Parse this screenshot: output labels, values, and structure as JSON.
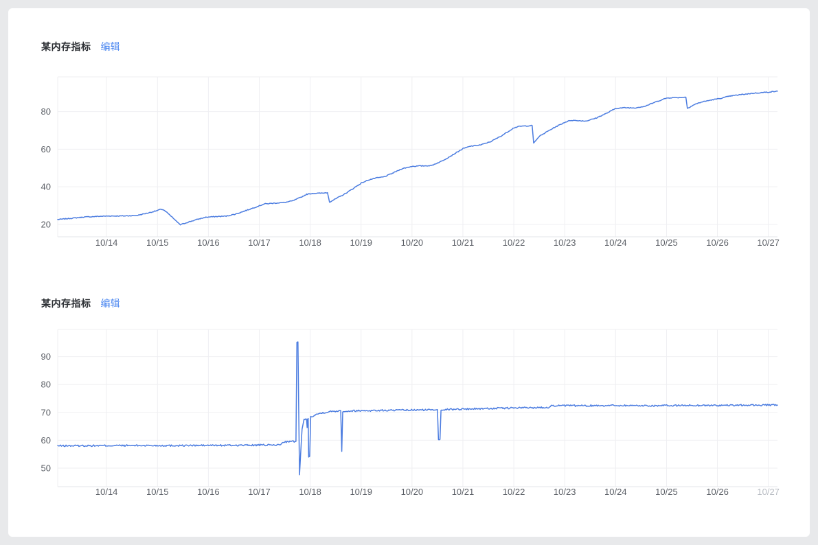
{
  "panels": [
    {
      "title": "某内存指标",
      "edit_label": "编辑"
    },
    {
      "title": "某内存指标",
      "edit_label": "编辑"
    }
  ],
  "colors": {
    "page_background": "#e8e9eb",
    "card_background": "#ffffff",
    "title_text": "#2b2e33",
    "edit_link": "#4a86f0",
    "grid_line": "#efeff2",
    "axis_line": "#e3e5e9",
    "tick_label": "#5b5f66",
    "tick_label_muted": "#b7bbc2",
    "series_line": "#4b7ce0"
  },
  "chart_data": [
    {
      "type": "line",
      "title": "某内存指标",
      "legend": [],
      "grid": true,
      "x_tick_labels": [
        "10/14",
        "10/15",
        "10/16",
        "10/17",
        "10/18",
        "10/19",
        "10/20",
        "10/21",
        "10/22",
        "10/23",
        "10/24",
        "10/25",
        "10/26",
        "10/27"
      ],
      "x_tick_days": [
        14,
        15,
        16,
        17,
        18,
        19,
        20,
        21,
        22,
        23,
        24,
        25,
        26,
        27
      ],
      "x_domain": [
        13.04,
        27.18
      ],
      "y_tick_values": [
        20,
        40,
        60,
        80
      ],
      "y_domain": [
        13.4,
        98.5
      ],
      "last_x_tick_muted": false,
      "noise_amplitude": 0.22,
      "noise_seed": 7,
      "points": [
        [
          13.04,
          22.6
        ],
        [
          13.25,
          23.1
        ],
        [
          13.55,
          23.9
        ],
        [
          13.85,
          24.3
        ],
        [
          14.1,
          24.5
        ],
        [
          14.35,
          24.5
        ],
        [
          14.6,
          24.8
        ],
        [
          14.85,
          26.3
        ],
        [
          15.0,
          27.4
        ],
        [
          15.07,
          28.1
        ],
        [
          15.12,
          27.7
        ],
        [
          15.2,
          26.0
        ],
        [
          15.33,
          22.8
        ],
        [
          15.45,
          19.8
        ],
        [
          15.6,
          21.2
        ],
        [
          15.8,
          22.8
        ],
        [
          15.95,
          23.8
        ],
        [
          16.1,
          24.1
        ],
        [
          16.35,
          24.4
        ],
        [
          16.55,
          25.6
        ],
        [
          16.75,
          27.5
        ],
        [
          17.0,
          29.9
        ],
        [
          17.1,
          30.9
        ],
        [
          17.3,
          31.3
        ],
        [
          17.5,
          31.7
        ],
        [
          17.65,
          32.5
        ],
        [
          17.8,
          34.2
        ],
        [
          17.93,
          36.0
        ],
        [
          18.05,
          36.5
        ],
        [
          18.2,
          36.6
        ],
        [
          18.34,
          36.9
        ],
        [
          18.38,
          31.9
        ],
        [
          18.52,
          33.9
        ],
        [
          18.66,
          35.9
        ],
        [
          18.8,
          38.3
        ],
        [
          19.0,
          41.9
        ],
        [
          19.15,
          43.7
        ],
        [
          19.3,
          44.7
        ],
        [
          19.45,
          45.3
        ],
        [
          19.6,
          47.0
        ],
        [
          19.8,
          49.6
        ],
        [
          20.0,
          50.9
        ],
        [
          20.15,
          51.1
        ],
        [
          20.38,
          51.3
        ],
        [
          20.58,
          53.6
        ],
        [
          20.8,
          57.0
        ],
        [
          21.0,
          60.3
        ],
        [
          21.15,
          61.6
        ],
        [
          21.35,
          62.3
        ],
        [
          21.55,
          64.1
        ],
        [
          21.75,
          67.0
        ],
        [
          21.9,
          69.6
        ],
        [
          22.0,
          71.4
        ],
        [
          22.12,
          72.2
        ],
        [
          22.25,
          72.4
        ],
        [
          22.36,
          72.6
        ],
        [
          22.39,
          63.3
        ],
        [
          22.5,
          66.8
        ],
        [
          22.65,
          69.3
        ],
        [
          22.8,
          71.6
        ],
        [
          23.0,
          74.3
        ],
        [
          23.12,
          75.4
        ],
        [
          23.28,
          75.2
        ],
        [
          23.42,
          75.0
        ],
        [
          23.62,
          76.6
        ],
        [
          23.82,
          79.1
        ],
        [
          24.0,
          81.7
        ],
        [
          24.18,
          82.1
        ],
        [
          24.38,
          82.0
        ],
        [
          24.58,
          82.9
        ],
        [
          24.78,
          85.1
        ],
        [
          25.0,
          87.2
        ],
        [
          25.12,
          87.5
        ],
        [
          25.25,
          87.5
        ],
        [
          25.38,
          87.7
        ],
        [
          25.41,
          81.8
        ],
        [
          25.55,
          83.8
        ],
        [
          25.7,
          85.2
        ],
        [
          25.9,
          86.3
        ],
        [
          26.05,
          87.0
        ],
        [
          26.25,
          88.3
        ],
        [
          26.5,
          89.2
        ],
        [
          26.75,
          89.9
        ],
        [
          27.0,
          90.4
        ],
        [
          27.18,
          90.9
        ]
      ]
    },
    {
      "type": "line",
      "title": "某内存指标",
      "legend": [],
      "grid": true,
      "x_tick_labels": [
        "10/14",
        "10/15",
        "10/16",
        "10/17",
        "10/18",
        "10/19",
        "10/20",
        "10/21",
        "10/22",
        "10/23",
        "10/24",
        "10/25",
        "10/26",
        "10/27"
      ],
      "x_tick_days": [
        14,
        15,
        16,
        17,
        18,
        19,
        20,
        21,
        22,
        23,
        24,
        25,
        26,
        27
      ],
      "x_domain": [
        13.04,
        27.18
      ],
      "y_tick_values": [
        50,
        60,
        70,
        80,
        90
      ],
      "y_domain": [
        43.35,
        99.75
      ],
      "last_x_tick_muted": true,
      "noise_amplitude": 0.3,
      "noise_seed": 13,
      "points": [
        [
          13.04,
          58.0
        ],
        [
          14.2,
          58.1
        ],
        [
          15.4,
          58.1
        ],
        [
          16.6,
          58.2
        ],
        [
          17.35,
          58.3
        ],
        [
          17.42,
          58.4
        ],
        [
          17.46,
          59.4
        ],
        [
          17.6,
          59.5
        ],
        [
          17.72,
          59.6
        ],
        [
          17.74,
          95.3
        ],
        [
          17.76,
          95.3
        ],
        [
          17.79,
          47.6
        ],
        [
          17.84,
          64.0
        ],
        [
          17.88,
          67.4
        ],
        [
          17.93,
          67.5
        ],
        [
          17.94,
          64.5
        ],
        [
          17.95,
          67.8
        ],
        [
          17.96,
          67.8
        ],
        [
          17.97,
          54.2
        ],
        [
          17.99,
          54.2
        ],
        [
          18.01,
          68.4
        ],
        [
          18.1,
          69.2
        ],
        [
          18.25,
          69.9
        ],
        [
          18.4,
          70.3
        ],
        [
          18.57,
          70.6
        ],
        [
          18.6,
          70.6
        ],
        [
          18.62,
          56.0
        ],
        [
          18.64,
          70.4
        ],
        [
          18.9,
          70.6
        ],
        [
          19.4,
          70.7
        ],
        [
          19.9,
          70.8
        ],
        [
          20.3,
          70.9
        ],
        [
          20.5,
          71.0
        ],
        [
          20.52,
          60.3
        ],
        [
          20.55,
          60.3
        ],
        [
          20.57,
          71.0
        ],
        [
          21.0,
          71.2
        ],
        [
          21.5,
          71.4
        ],
        [
          22.0,
          71.6
        ],
        [
          22.4,
          71.7
        ],
        [
          22.68,
          71.8
        ],
        [
          22.72,
          72.4
        ],
        [
          23.3,
          72.4
        ],
        [
          24.0,
          72.5
        ],
        [
          24.7,
          72.4
        ],
        [
          25.4,
          72.5
        ],
        [
          26.1,
          72.5
        ],
        [
          26.7,
          72.6
        ],
        [
          27.18,
          72.6
        ]
      ]
    }
  ]
}
